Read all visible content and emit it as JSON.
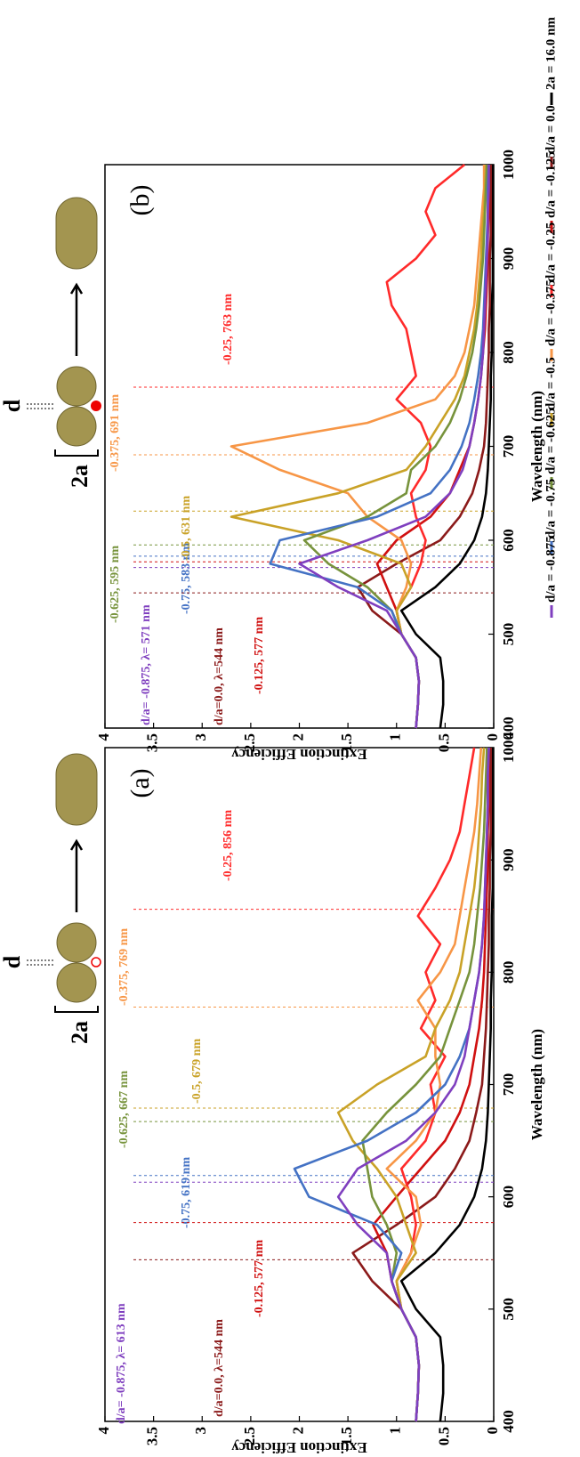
{
  "chart_data": [
    {
      "type": "line",
      "panel_label": "(a)",
      "inset_labels": [
        "2a",
        "d"
      ],
      "x_label": "Wavelength (nm)",
      "y_label": "Extinction Efficiency",
      "x": [
        400,
        425,
        450,
        475,
        500,
        525,
        550,
        575,
        600,
        625,
        650,
        675,
        700,
        725,
        750,
        775,
        800,
        825,
        850,
        875,
        900,
        925,
        950,
        975,
        1000
      ],
      "xlim": [
        400,
        1000
      ],
      "xticks": [
        400,
        500,
        600,
        700,
        800,
        900,
        1000
      ],
      "ylim": [
        0,
        4
      ],
      "yticks": [
        0,
        0.5,
        1,
        1.5,
        2,
        2.5,
        3,
        3.5,
        4
      ],
      "series": [
        {
          "color": "#000000",
          "values": [
            0.55,
            0.52,
            0.52,
            0.55,
            0.8,
            0.95,
            0.6,
            0.35,
            0.2,
            0.12,
            0.08,
            0.06,
            0.05,
            0.04,
            0.03,
            0.03,
            0.02,
            0.02,
            0.02,
            0.01,
            0.01,
            0.01,
            0.01,
            0.01,
            0.01
          ]
        },
        {
          "color": "#8b1a1a",
          "values": [
            0.8,
            0.78,
            0.77,
            0.8,
            0.95,
            1.25,
            1.45,
            1.0,
            0.6,
            0.4,
            0.25,
            0.18,
            0.12,
            0.1,
            0.08,
            0.07,
            0.06,
            0.05,
            0.05,
            0.04,
            0.04,
            0.03,
            0.03,
            0.03,
            0.03
          ]
        },
        {
          "color": "#d01010",
          "values": [
            0.8,
            0.78,
            0.77,
            0.8,
            0.95,
            1.05,
            1.1,
            1.24,
            1.0,
            0.75,
            0.5,
            0.35,
            0.25,
            0.2,
            0.15,
            0.12,
            0.1,
            0.09,
            0.08,
            0.07,
            0.06,
            0.06,
            0.05,
            0.05,
            0.05
          ]
        },
        {
          "color": "#ff2a2a",
          "values": [
            0.8,
            0.78,
            0.77,
            0.8,
            0.95,
            1.0,
            0.85,
            0.8,
            0.85,
            0.95,
            0.7,
            0.6,
            0.65,
            0.5,
            0.75,
            0.6,
            0.7,
            0.55,
            0.78,
            0.6,
            0.45,
            0.35,
            0.3,
            0.25,
            0.2
          ]
        },
        {
          "color": "#f79646",
          "values": [
            0.8,
            0.78,
            0.77,
            0.8,
            0.95,
            1.0,
            0.85,
            0.75,
            0.8,
            1.1,
            0.8,
            0.6,
            0.55,
            0.6,
            0.6,
            0.78,
            0.55,
            0.4,
            0.35,
            0.3,
            0.25,
            0.2,
            0.17,
            0.15,
            0.13
          ]
        },
        {
          "color": "#c9a227",
          "values": [
            0.8,
            0.78,
            0.77,
            0.8,
            0.95,
            1.0,
            0.8,
            0.9,
            1.0,
            1.2,
            1.45,
            1.6,
            1.2,
            0.7,
            0.6,
            0.45,
            0.35,
            0.3,
            0.25,
            0.2,
            0.17,
            0.15,
            0.13,
            0.12,
            0.1
          ]
        },
        {
          "color": "#77933c",
          "values": [
            0.8,
            0.78,
            0.77,
            0.8,
            0.95,
            1.05,
            1.0,
            1.1,
            1.25,
            1.3,
            1.35,
            1.1,
            0.8,
            0.55,
            0.45,
            0.35,
            0.25,
            0.2,
            0.17,
            0.14,
            0.12,
            0.1,
            0.09,
            0.08,
            0.07
          ]
        },
        {
          "color": "#4472c4",
          "values": [
            0.8,
            0.78,
            0.77,
            0.8,
            0.95,
            1.05,
            0.95,
            1.2,
            1.9,
            2.05,
            1.3,
            0.8,
            0.5,
            0.35,
            0.25,
            0.2,
            0.15,
            0.12,
            0.1,
            0.09,
            0.08,
            0.07,
            0.06,
            0.06,
            0.05
          ]
        },
        {
          "color": "#7f3fbf",
          "values": [
            0.8,
            0.78,
            0.77,
            0.8,
            0.95,
            1.05,
            1.1,
            1.4,
            1.6,
            1.4,
            0.9,
            0.6,
            0.4,
            0.3,
            0.25,
            0.2,
            0.15,
            0.12,
            0.1,
            0.09,
            0.08,
            0.07,
            0.06,
            0.06,
            0.05
          ]
        }
      ],
      "annotations": [
        {
          "text": "d/a= -0.875, λ= 613 nm",
          "x": 613,
          "color": "#7f3fbf"
        },
        {
          "text": "-0.75, 619 nm",
          "x": 619,
          "color": "#4472c4"
        },
        {
          "text": "-0.625, 667 nm",
          "x": 667,
          "color": "#77933c"
        },
        {
          "text": "-0.5, 679 nm",
          "x": 679,
          "color": "#c9a227"
        },
        {
          "text": "-0.375, 769 nm",
          "x": 769,
          "color": "#f79646"
        },
        {
          "text": "-0.25, 856 nm",
          "x": 856,
          "color": "#ff2a2a"
        },
        {
          "text": "d/a=0.0, λ=544 nm",
          "x": 544,
          "color": "#8b1a1a"
        },
        {
          "text": "-0.125, 577 nm",
          "x": 577,
          "color": "#d01010"
        }
      ]
    },
    {
      "type": "line",
      "panel_label": "(b)",
      "inset_labels": [
        "2a",
        "d"
      ],
      "x_label": "Wavelength (nm)",
      "y_label": "Extinction Efficiency",
      "x": [
        400,
        425,
        450,
        475,
        500,
        525,
        550,
        575,
        600,
        625,
        650,
        675,
        700,
        725,
        750,
        775,
        800,
        825,
        850,
        875,
        900,
        925,
        950,
        975,
        1000
      ],
      "xlim": [
        400,
        1000
      ],
      "xticks": [
        400,
        500,
        600,
        700,
        800,
        900,
        1000
      ],
      "ylim": [
        0,
        4
      ],
      "yticks": [
        0,
        0.5,
        1,
        1.5,
        2,
        2.5,
        3,
        3.5,
        4
      ],
      "series": [
        {
          "name": "2a = 16.0 nm",
          "color": "#000000",
          "values": [
            0.55,
            0.52,
            0.52,
            0.55,
            0.8,
            0.95,
            0.6,
            0.35,
            0.2,
            0.12,
            0.08,
            0.06,
            0.05,
            0.04,
            0.03,
            0.03,
            0.02,
            0.02,
            0.02,
            0.01,
            0.01,
            0.01,
            0.01,
            0.01,
            0.01
          ]
        },
        {
          "name": "d/a = 0.0",
          "color": "#8b1a1a",
          "values": [
            0.8,
            0.78,
            0.77,
            0.8,
            0.95,
            1.25,
            1.4,
            1.0,
            0.55,
            0.35,
            0.22,
            0.15,
            0.1,
            0.08,
            0.07,
            0.06,
            0.05,
            0.05,
            0.04,
            0.04,
            0.04,
            0.03,
            0.03,
            0.03,
            0.03
          ]
        },
        {
          "name": "d/a = -0.125",
          "color": "#d01010",
          "values": [
            0.8,
            0.78,
            0.77,
            0.8,
            0.95,
            1.0,
            1.1,
            1.2,
            1.0,
            0.65,
            0.45,
            0.35,
            0.25,
            0.2,
            0.16,
            0.13,
            0.11,
            0.09,
            0.08,
            0.07,
            0.06,
            0.06,
            0.05,
            0.05,
            0.05
          ]
        },
        {
          "name": "d/a = -0.25",
          "color": "#ff2a2a",
          "values": [
            0.8,
            0.78,
            0.77,
            0.8,
            0.95,
            1.0,
            0.85,
            0.75,
            0.7,
            0.8,
            0.85,
            0.7,
            0.65,
            0.75,
            1.0,
            0.8,
            0.85,
            0.9,
            1.05,
            1.1,
            0.8,
            0.6,
            0.7,
            0.6,
            0.3
          ]
        },
        {
          "name": "d/a = -0.375",
          "color": "#f79646",
          "values": [
            0.8,
            0.78,
            0.77,
            0.8,
            0.95,
            1.0,
            0.9,
            0.85,
            0.95,
            1.3,
            1.5,
            2.2,
            2.7,
            1.3,
            0.6,
            0.4,
            0.3,
            0.25,
            0.2,
            0.18,
            0.16,
            0.14,
            0.12,
            0.1,
            0.1
          ]
        },
        {
          "name": "d/a = -0.5",
          "color": "#c9a227",
          "values": [
            0.8,
            0.78,
            0.77,
            0.8,
            0.95,
            1.0,
            0.85,
            0.95,
            1.6,
            2.7,
            1.6,
            0.9,
            0.7,
            0.55,
            0.4,
            0.3,
            0.25,
            0.2,
            0.17,
            0.15,
            0.13,
            0.12,
            0.1,
            0.09,
            0.08
          ]
        },
        {
          "name": "d/a = -0.625",
          "color": "#77933c",
          "values": [
            0.8,
            0.78,
            0.77,
            0.8,
            0.95,
            1.05,
            1.3,
            1.7,
            1.95,
            1.3,
            0.9,
            0.85,
            0.6,
            0.45,
            0.35,
            0.28,
            0.22,
            0.18,
            0.15,
            0.13,
            0.11,
            0.1,
            0.09,
            0.08,
            0.07
          ]
        },
        {
          "name": "d/a = -0.75",
          "color": "#4472c4",
          "values": [
            0.8,
            0.78,
            0.77,
            0.8,
            0.95,
            1.05,
            1.4,
            2.3,
            2.2,
            1.2,
            0.65,
            0.45,
            0.33,
            0.25,
            0.2,
            0.16,
            0.13,
            0.11,
            0.1,
            0.09,
            0.08,
            0.07,
            0.06,
            0.06,
            0.05
          ]
        },
        {
          "name": "d/a = -0.875",
          "color": "#7f3fbf",
          "values": [
            0.8,
            0.78,
            0.77,
            0.8,
            0.95,
            1.1,
            1.6,
            2.0,
            1.3,
            0.7,
            0.45,
            0.32,
            0.25,
            0.2,
            0.16,
            0.13,
            0.11,
            0.1,
            0.09,
            0.08,
            0.07,
            0.06,
            0.06,
            0.05,
            0.05
          ]
        }
      ],
      "annotations": [
        {
          "text": "d/a= -0.875, λ= 571 nm",
          "x": 571,
          "color": "#7f3fbf"
        },
        {
          "text": "-0.75, 583 nm",
          "x": 583,
          "color": "#4472c4"
        },
        {
          "text": "-0.625, 595 nm",
          "x": 595,
          "color": "#77933c"
        },
        {
          "text": "-0.5, 631 nm",
          "x": 631,
          "color": "#c9a227"
        },
        {
          "text": "-0.375, 691 nm",
          "x": 691,
          "color": "#f79646"
        },
        {
          "text": "-0.25, 763 nm",
          "x": 763,
          "color": "#ff2a2a"
        },
        {
          "text": "d/a=0.0, λ=544 nm",
          "x": 544,
          "color": "#8b1a1a"
        },
        {
          "text": "-0.125, 577 nm",
          "x": 577,
          "color": "#d01010"
        }
      ]
    }
  ]
}
